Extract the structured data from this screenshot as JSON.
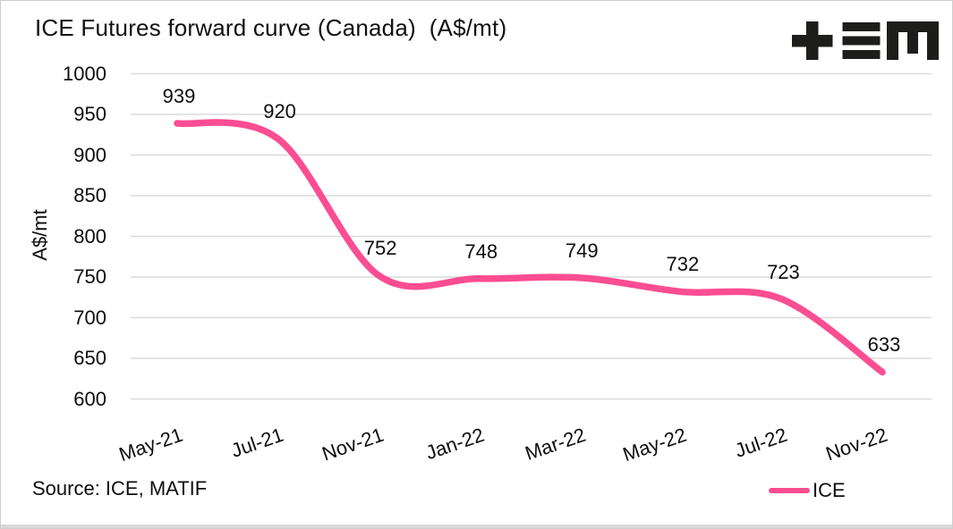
{
  "header": {
    "title": "ICE Futures forward curve (Canada)  (A$/mt)",
    "logo": "tem-logo"
  },
  "footer": {
    "source_label": "Source: ICE, MATIF"
  },
  "legend": {
    "series_label": "ICE"
  },
  "colors": {
    "series_pink": "#FB4D92",
    "gridline": "#DADADA",
    "text": "#111111",
    "logo_black": "#1D1D1B",
    "frame_gray": "#CFCFCF"
  },
  "chart_data": {
    "type": "line",
    "title": "ICE Futures forward curve (Canada)  (A$/mt)",
    "categories": [
      "May-21",
      "Jul-21",
      "Nov-21",
      "Jan-22",
      "Mar-22",
      "May-22",
      "Jul-22",
      "Nov-22"
    ],
    "series": [
      {
        "name": "ICE",
        "color": "#FB4D92",
        "values": [
          939,
          920,
          752,
          748,
          749,
          732,
          723,
          633
        ],
        "data_labels_visible": true,
        "line_style": "smooth",
        "line_width": 7.5
      }
    ],
    "xlabel": "",
    "ylabel": "A$/mt",
    "ylim": [
      600,
      1000
    ],
    "ytick_step": 50,
    "yticks": [
      1000,
      950,
      900,
      850,
      800,
      750,
      700,
      650,
      600
    ],
    "grid": "horizontal-only",
    "legend_position": "bottom-right",
    "x_tick_rotation_deg": -19
  }
}
